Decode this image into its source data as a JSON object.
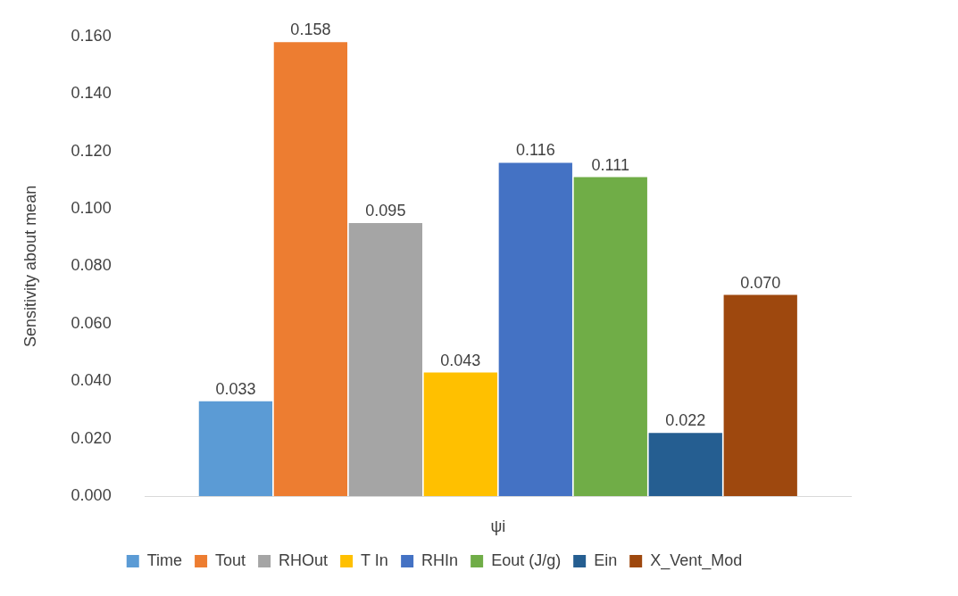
{
  "chart_data": {
    "type": "bar",
    "ylabel": "Sensitivity about mean",
    "xlabel": "ψi",
    "categories": [
      null
    ],
    "series": [
      {
        "name": "Time",
        "color": "#5b9bd5",
        "values": [
          0.033
        ],
        "value_labels": [
          "0.033"
        ]
      },
      {
        "name": "Tout",
        "color": "#ed7d31",
        "values": [
          0.158
        ],
        "value_labels": [
          "0.158"
        ]
      },
      {
        "name": "RHOut",
        "color": "#a5a5a5",
        "values": [
          0.095
        ],
        "value_labels": [
          "0.095"
        ]
      },
      {
        "name": "T In",
        "color": "#ffc000",
        "values": [
          0.043
        ],
        "value_labels": [
          "0.043"
        ]
      },
      {
        "name": "RHIn",
        "color": "#4472c4",
        "values": [
          0.116
        ],
        "value_labels": [
          "0.116"
        ]
      },
      {
        "name": "Eout (J/g)",
        "color": "#70ad47",
        "values": [
          0.111
        ],
        "value_labels": [
          "0.111"
        ]
      },
      {
        "name": "Ein",
        "color": "#255e91",
        "values": [
          0.022
        ],
        "value_labels": [
          "0.022"
        ]
      },
      {
        "name": "X_Vent_Mod",
        "color": "#9e480e",
        "values": [
          0.07
        ],
        "value_labels": [
          "0.070"
        ]
      }
    ],
    "ylim": [
      0,
      0.16
    ],
    "yticks": [
      {
        "value": 0,
        "label": "0.000"
      },
      {
        "value": 0.02,
        "label": "0.020"
      },
      {
        "value": 0.04,
        "label": "0.040"
      },
      {
        "value": 0.06,
        "label": "0.060"
      },
      {
        "value": 0.08,
        "label": "0.080"
      },
      {
        "value": 0.1,
        "label": "0.100"
      },
      {
        "value": 0.12,
        "label": "0.120"
      },
      {
        "value": 0.14,
        "label": "0.140"
      },
      {
        "value": 0.16,
        "label": "0.160"
      }
    ],
    "grid": false,
    "legend": "bottom"
  }
}
